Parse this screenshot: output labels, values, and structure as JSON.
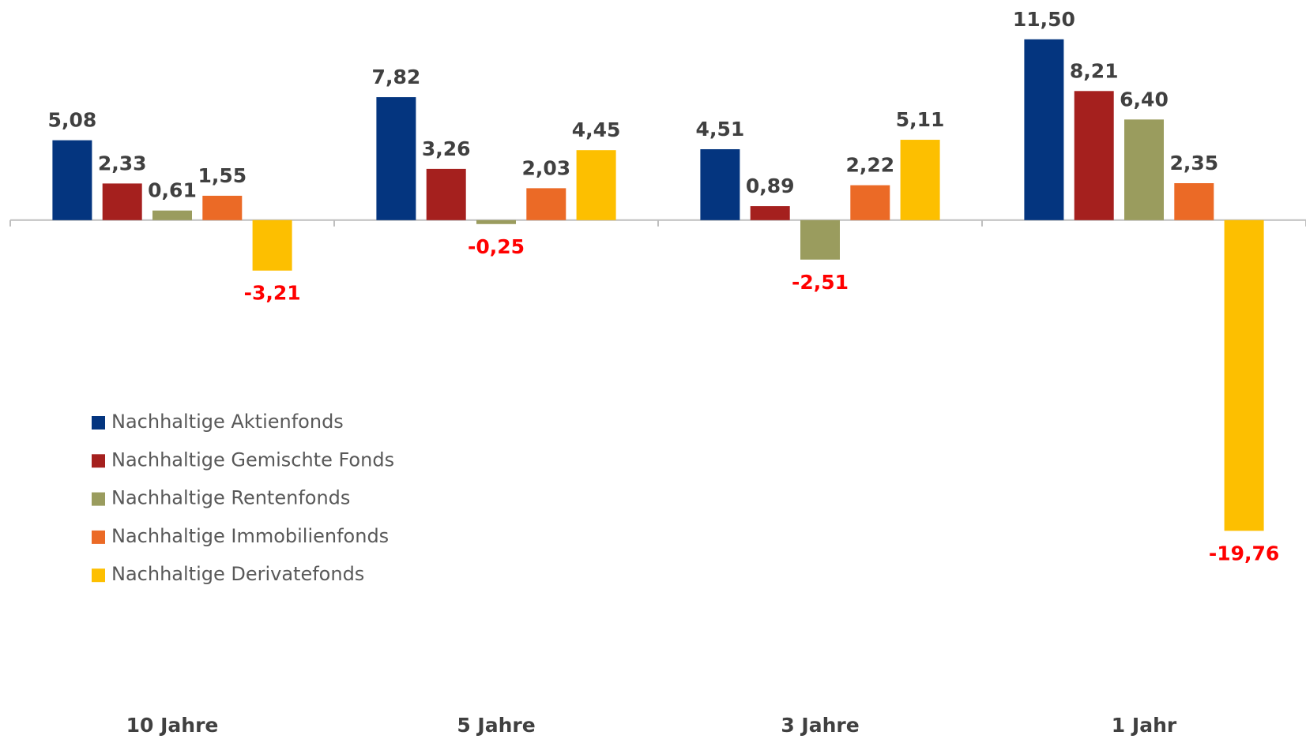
{
  "chart_data": {
    "type": "bar",
    "categories": [
      "10 Jahre",
      "5 Jahre",
      "3 Jahre",
      "1 Jahr"
    ],
    "series": [
      {
        "name": "Nachhaltige Aktienfonds",
        "color": "#04357f",
        "values": [
          5.08,
          7.82,
          4.51,
          11.5
        ],
        "value_labels": [
          "5,08",
          "7,82",
          "4,51",
          "11,50"
        ]
      },
      {
        "name": "Nachhaltige Gemischte Fonds",
        "color": "#a5201e",
        "values": [
          2.33,
          3.26,
          0.89,
          8.21
        ],
        "value_labels": [
          "2,33",
          "3,26",
          "0,89",
          "8,21"
        ]
      },
      {
        "name": "Nachhaltige Rentenfonds",
        "color": "#9a9c5e",
        "values": [
          0.61,
          -0.25,
          -2.51,
          6.4
        ],
        "value_labels": [
          "0,61",
          "-0,25",
          "-2,51",
          "6,40"
        ]
      },
      {
        "name": "Nachhaltige Immobilienfonds",
        "color": "#eb6a26",
        "values": [
          1.55,
          2.03,
          2.22,
          2.35
        ],
        "value_labels": [
          "1,55",
          "2,03",
          "2,22",
          "2,35"
        ]
      },
      {
        "name": "Nachhaltige Derivatefonds",
        "color": "#fdbf00",
        "values": [
          -3.21,
          4.45,
          5.11,
          -19.76
        ],
        "value_labels": [
          "-3,21",
          "4,45",
          "5,11",
          "-19,76"
        ]
      }
    ],
    "ylim": [
      -33,
      14
    ],
    "label_color": "#404040",
    "negative_label_color": "#ff0000",
    "legend": "left"
  }
}
